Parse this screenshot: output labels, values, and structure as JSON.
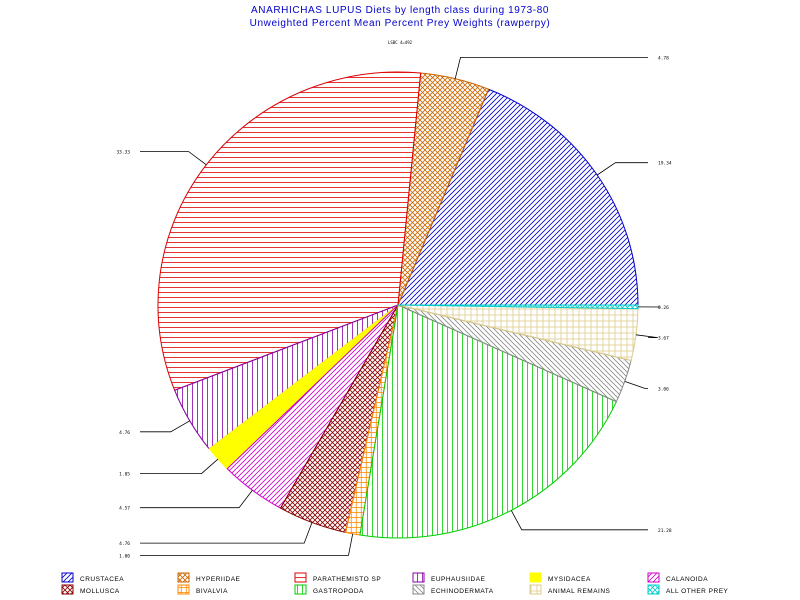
{
  "chart_data": {
    "type": "pie",
    "title": "ANARHICHAS LUPUS Diets by length class during 1973-80",
    "subtitle": "Unweighted Percent Mean Percent Prey  Weights (rawperpy)",
    "panel_label": "LSBC 4=492",
    "slices": [
      {
        "name": "CRUSTACEA",
        "value": 19.34,
        "label": "19.34",
        "color": "#0000cc",
        "pattern": "diag-right"
      },
      {
        "name": "HYPERIIDAE",
        "value": 4.78,
        "label": "4.78",
        "color": "#cc6600",
        "pattern": "crosshatch"
      },
      {
        "name": "PARATHEMISTO SP",
        "value": 33.33,
        "label": "33.33",
        "color": "#dd0000",
        "pattern": "horizontal"
      },
      {
        "name": "EUPHAUSIIDAE",
        "value": 4.76,
        "label": "4.76",
        "color": "#8800aa",
        "pattern": "vertical"
      },
      {
        "name": "MYSIDACEA",
        "value": 1.85,
        "label": "1.85",
        "color": "#ffff00",
        "pattern": "solid"
      },
      {
        "name": "CALANOIDA",
        "value": 4.57,
        "label": "4.57",
        "color": "#cc00cc",
        "pattern": "diag-right"
      },
      {
        "name": "MOLLUSCA",
        "value": 4.76,
        "label": "4.76",
        "color": "#880000",
        "pattern": "crosshatch"
      },
      {
        "name": "BIVALVIA",
        "value": 1.0,
        "label": "1.00",
        "color": "#ff8800",
        "pattern": "vertical-horizontal"
      },
      {
        "name": "GASTROPODA",
        "value": 21.28,
        "label": "21.28",
        "color": "#00cc00",
        "pattern": "vertical"
      },
      {
        "name": "ECHINODERMATA",
        "value": 3.06,
        "label": "3.06",
        "color": "#888888",
        "pattern": "diag-left"
      },
      {
        "name": "ANIMAL REMAINS",
        "value": 3.67,
        "label": "3.67",
        "color": "#ddcc88",
        "pattern": "grid"
      },
      {
        "name": "ALL OTHER PREY",
        "value": 0.26,
        "label": "0.26",
        "color": "#00cccc",
        "pattern": "crosshatch"
      }
    ],
    "legend_placement": "bottom"
  },
  "legend_order": [
    "CRUSTACEA",
    "HYPERIIDAE",
    "PARATHEMISTO SP",
    "EUPHAUSIIDAE",
    "MYSIDACEA",
    "CALANOIDA",
    "MOLLUSCA",
    "BIVALVIA",
    "GASTROPODA",
    "ECHINODERMATA",
    "ANIMAL REMAINS",
    "ALL OTHER PREY"
  ]
}
